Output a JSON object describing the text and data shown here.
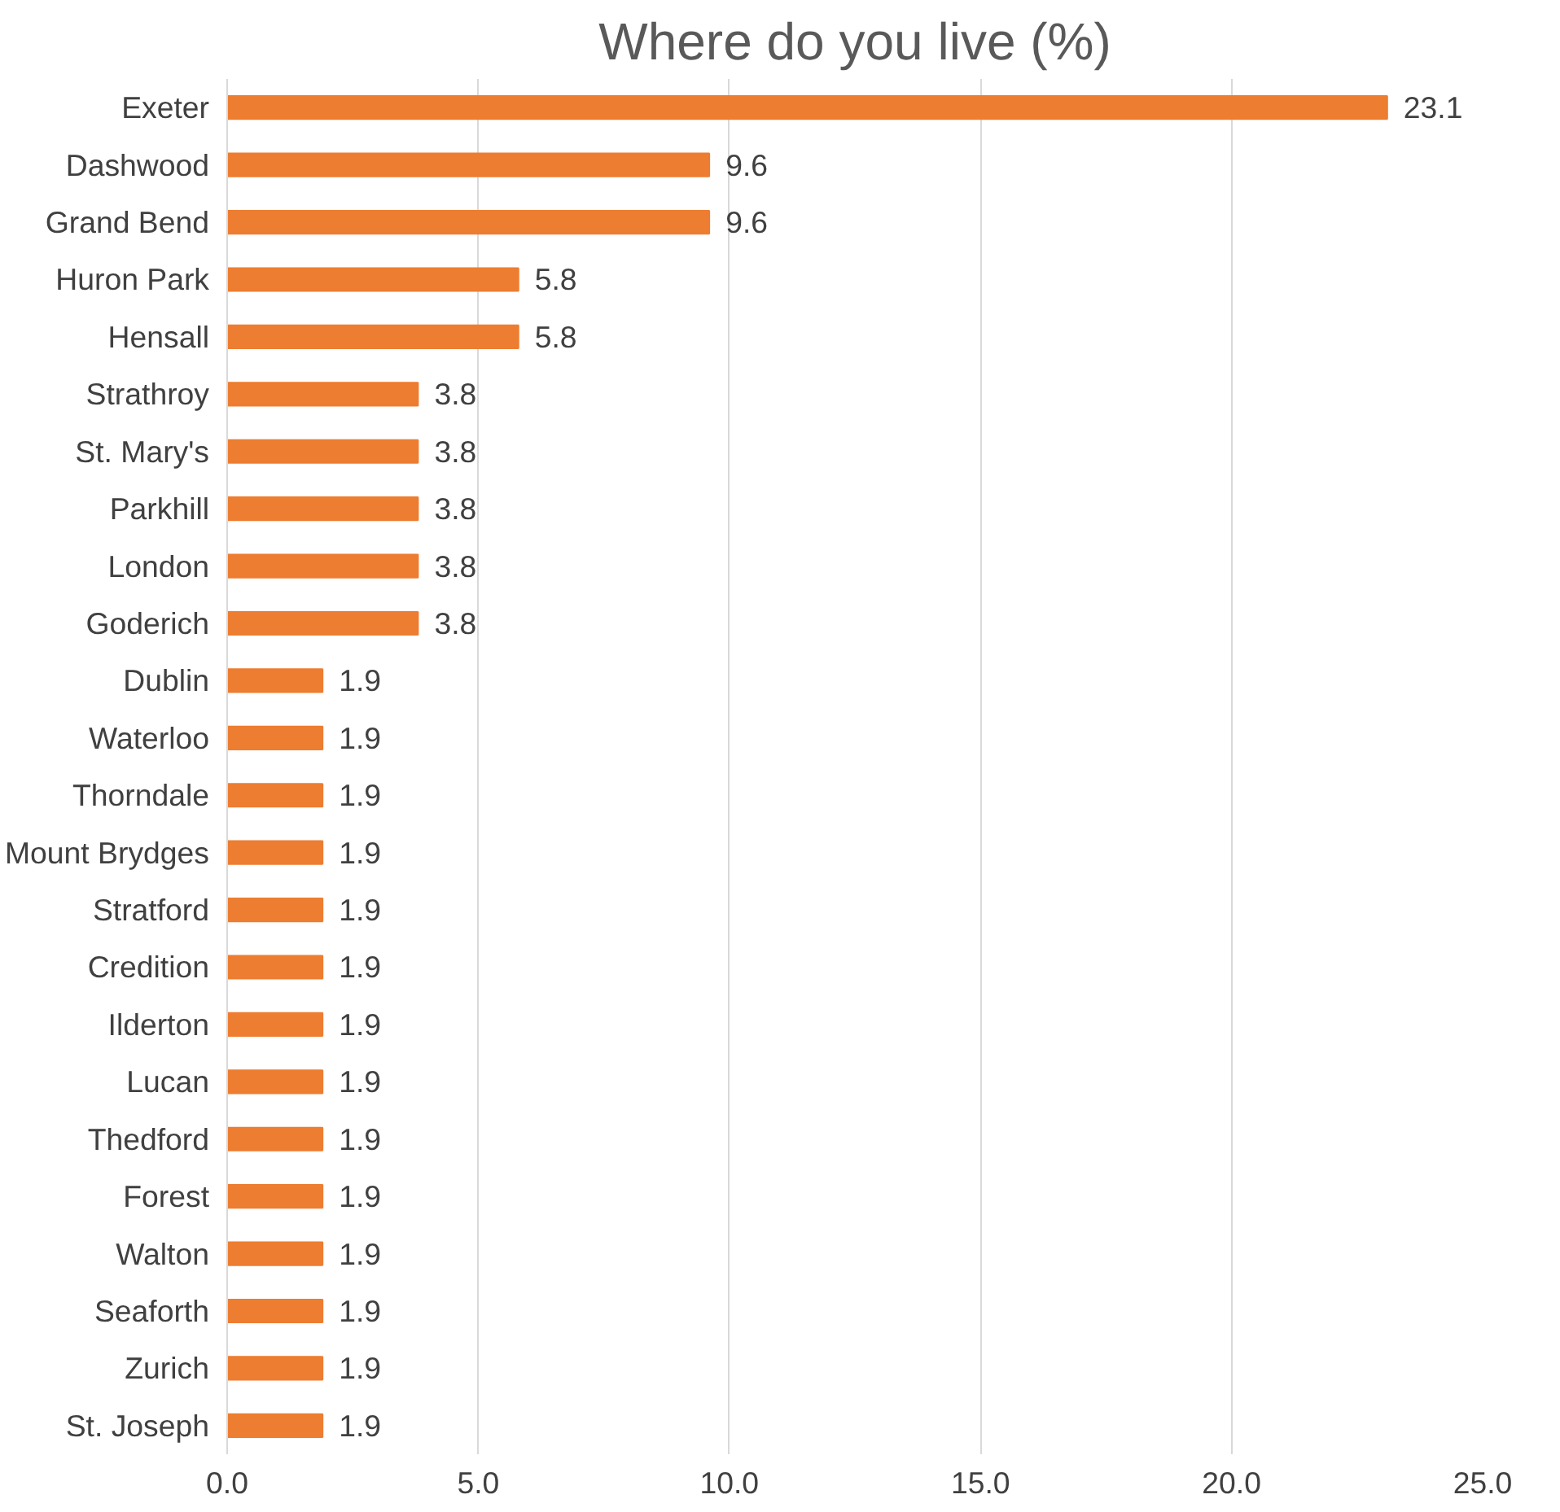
{
  "chart_data": {
    "type": "bar",
    "orientation": "horizontal",
    "title": "Where do you live (%)",
    "categories": [
      "Exeter",
      "Dashwood",
      "Grand Bend",
      "Huron Park",
      "Hensall",
      "Strathroy",
      "St. Mary's",
      "Parkhill",
      "London",
      "Goderich",
      "Dublin",
      "Waterloo",
      "Thorndale",
      "Mount Brydges",
      "Stratford",
      "Credition",
      "Ilderton",
      "Lucan",
      "Thedford",
      "Forest",
      "Walton",
      "Seaforth",
      "Zurich",
      "St. Joseph"
    ],
    "values": [
      23.1,
      9.6,
      9.6,
      5.8,
      5.8,
      3.8,
      3.8,
      3.8,
      3.8,
      3.8,
      1.9,
      1.9,
      1.9,
      1.9,
      1.9,
      1.9,
      1.9,
      1.9,
      1.9,
      1.9,
      1.9,
      1.9,
      1.9,
      1.9
    ],
    "color": "#ed7d31",
    "data_labels": true,
    "grid": "x",
    "xlim": [
      0,
      25
    ],
    "xticks": [
      {
        "value": 0,
        "label": "0.0"
      },
      {
        "value": 5,
        "label": "5.0"
      },
      {
        "value": 10,
        "label": "10.0"
      },
      {
        "value": 15,
        "label": "15.0"
      },
      {
        "value": 20,
        "label": "20.0"
      },
      {
        "value": 25,
        "label": "25.0"
      }
    ]
  }
}
